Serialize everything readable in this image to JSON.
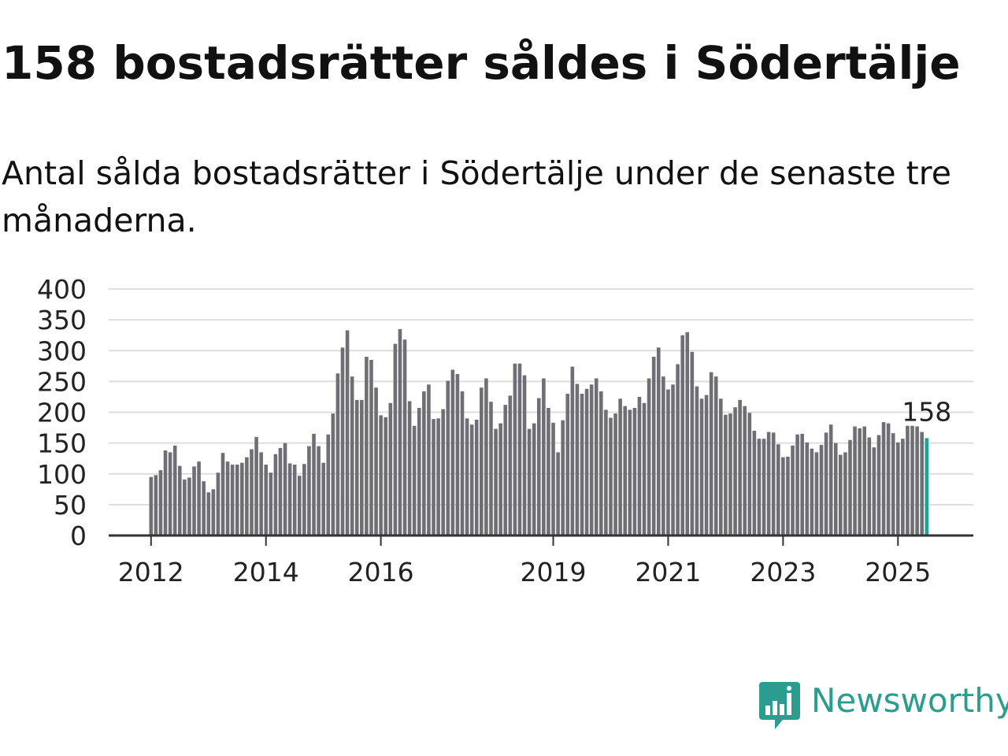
{
  "title": "158 bostadsrätter såldes i Södertälje",
  "subtitle": "Antal sålda bostadsrätter i Södertälje under de senaste tre månaderna.",
  "logo": {
    "text": "Newsworthy",
    "color": "#2a9d8f"
  },
  "colors": {
    "bar": "#6f6e75",
    "highlight": "#1fa391",
    "grid": "#dddddd",
    "axis": "#333333"
  },
  "chart_data": {
    "type": "bar",
    "title": "",
    "xlabel": "",
    "ylabel": "",
    "ylim": [
      0,
      400
    ],
    "yticks": [
      0,
      50,
      100,
      150,
      200,
      250,
      300,
      350,
      400
    ],
    "xticks": [
      "2012",
      "2014",
      "2016",
      "2019",
      "2021",
      "2023",
      "2025"
    ],
    "grid": true,
    "highlight_label": "158",
    "values": [
      95,
      98,
      106,
      138,
      135,
      146,
      113,
      91,
      94,
      112,
      120,
      88,
      70,
      75,
      102,
      134,
      120,
      115,
      115,
      118,
      127,
      140,
      160,
      135,
      115,
      102,
      132,
      142,
      150,
      117,
      115,
      97,
      116,
      145,
      165,
      145,
      118,
      164,
      198,
      263,
      305,
      333,
      258,
      220,
      220,
      290,
      285,
      240,
      195,
      192,
      215,
      311,
      335,
      318,
      218,
      178,
      207,
      234,
      245,
      189,
      190,
      205,
      251,
      269,
      262,
      234,
      190,
      180,
      188,
      240,
      255,
      217,
      173,
      182,
      212,
      227,
      279,
      279,
      260,
      173,
      182,
      223,
      255,
      207,
      183,
      135,
      187,
      230,
      274,
      246,
      230,
      238,
      245,
      255,
      234,
      204,
      191,
      198,
      222,
      210,
      204,
      207,
      225,
      215,
      255,
      290,
      305,
      258,
      237,
      245,
      278,
      325,
      330,
      298,
      242,
      222,
      228,
      265,
      258,
      222,
      196,
      198,
      208,
      220,
      210,
      199,
      170,
      157,
      157,
      168,
      167,
      148,
      127,
      128,
      146,
      164,
      165,
      151,
      141,
      135,
      147,
      167,
      180,
      150,
      131,
      135,
      155,
      177,
      174,
      177,
      159,
      143,
      163,
      184,
      182,
      166,
      151,
      157,
      178,
      178,
      177,
      168,
      158
    ]
  }
}
